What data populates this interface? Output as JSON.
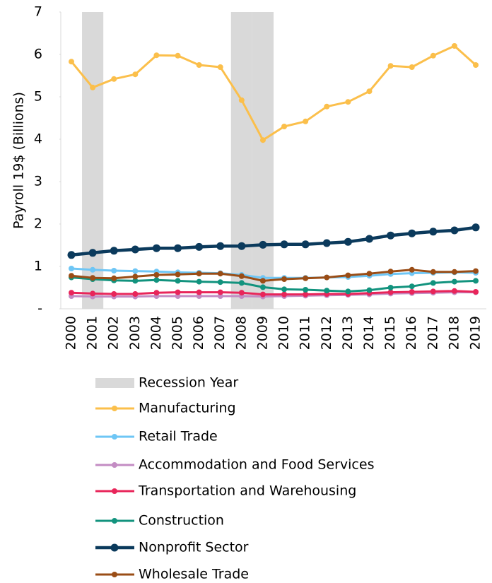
{
  "chart_data": {
    "type": "line",
    "y_label": "Payroll 19$ (Billions)",
    "categories": [
      "2000",
      "2001",
      "2002",
      "2003",
      "2004",
      "2005",
      "2006",
      "2007",
      "2008",
      "2009",
      "2010",
      "2011",
      "2012",
      "2013",
      "2014",
      "2015",
      "2016",
      "2017",
      "2018",
      "2019"
    ],
    "ylim": [
      0,
      7
    ],
    "yticks": [
      {
        "value": 0,
        "label": "-"
      },
      1,
      2,
      3,
      4,
      5,
      6,
      7
    ],
    "recession": {
      "type": "bar",
      "name": "Recession Year",
      "color": "#d9d9d9",
      "values": [
        null,
        7,
        null,
        null,
        null,
        null,
        null,
        null,
        7,
        7,
        null,
        null,
        null,
        null,
        null,
        null,
        null,
        null,
        null,
        null
      ]
    },
    "series": [
      {
        "name": "Manufacturing",
        "color": "#fbbf4b",
        "width": 3,
        "values": [
          5.83,
          5.22,
          5.42,
          5.53,
          5.98,
          5.97,
          5.75,
          5.7,
          4.92,
          3.98,
          4.3,
          4.42,
          4.77,
          4.88,
          5.13,
          5.73,
          5.7,
          5.97,
          6.2,
          5.75
        ]
      },
      {
        "name": "Retail Trade",
        "color": "#6ec6f5",
        "width": 3,
        "values": [
          0.95,
          0.92,
          0.9,
          0.89,
          0.88,
          0.86,
          0.85,
          0.84,
          0.8,
          0.73,
          0.73,
          0.73,
          0.74,
          0.75,
          0.78,
          0.82,
          0.84,
          0.85,
          0.86,
          0.85
        ]
      },
      {
        "name": "Accommodation and Food Services",
        "color": "#c38cc3",
        "width": 3,
        "values": [
          0.3,
          0.29,
          0.29,
          0.29,
          0.3,
          0.3,
          0.3,
          0.3,
          0.3,
          0.29,
          0.3,
          0.31,
          0.32,
          0.33,
          0.34,
          0.36,
          0.37,
          0.38,
          0.39,
          0.39
        ]
      },
      {
        "name": "Transportation and Warehousing",
        "color": "#e8255a",
        "width": 3,
        "values": [
          0.38,
          0.36,
          0.35,
          0.35,
          0.38,
          0.39,
          0.39,
          0.39,
          0.38,
          0.34,
          0.34,
          0.34,
          0.35,
          0.35,
          0.37,
          0.39,
          0.4,
          0.41,
          0.42,
          0.4
        ]
      },
      {
        "name": "Construction",
        "color": "#12937e",
        "width": 3,
        "values": [
          0.74,
          0.7,
          0.67,
          0.66,
          0.68,
          0.66,
          0.64,
          0.63,
          0.61,
          0.51,
          0.46,
          0.45,
          0.43,
          0.41,
          0.44,
          0.5,
          0.53,
          0.61,
          0.64,
          0.66
        ]
      },
      {
        "name": "Nonprofit Sector",
        "color": "#0b3a5c",
        "width": 4.5,
        "values": [
          1.27,
          1.32,
          1.37,
          1.4,
          1.43,
          1.43,
          1.46,
          1.48,
          1.48,
          1.51,
          1.52,
          1.52,
          1.55,
          1.58,
          1.65,
          1.73,
          1.78,
          1.82,
          1.85,
          1.92
        ]
      },
      {
        "name": "Wholesale Trade",
        "color": "#9a4d16",
        "width": 3,
        "values": [
          0.78,
          0.73,
          0.72,
          0.76,
          0.8,
          0.81,
          0.83,
          0.83,
          0.77,
          0.66,
          0.7,
          0.72,
          0.74,
          0.79,
          0.83,
          0.88,
          0.92,
          0.87,
          0.87,
          0.89
        ]
      }
    ]
  }
}
